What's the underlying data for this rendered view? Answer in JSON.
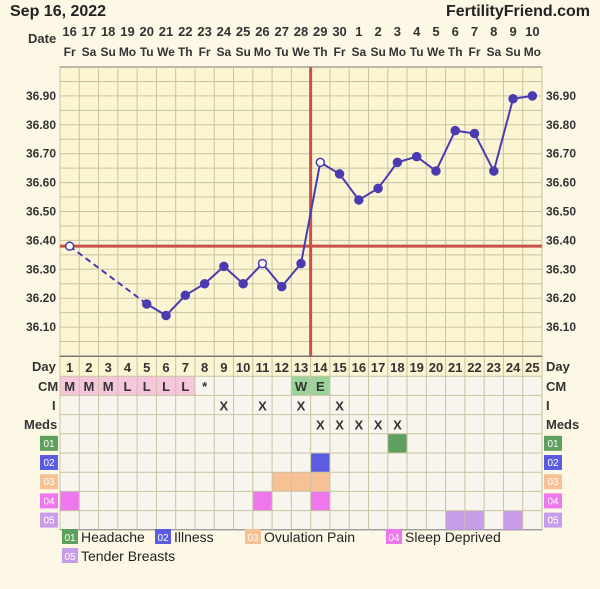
{
  "header": {
    "date": "Sep 16, 2022",
    "site": "FertilityFriend.com"
  },
  "labels": {
    "date_row": "Date",
    "day_row": "Day",
    "cm_row": "CM",
    "i_row": "I",
    "meds_row": "Meds"
  },
  "chart_data": {
    "type": "line",
    "dates": [
      "16",
      "17",
      "18",
      "19",
      "20",
      "21",
      "22",
      "23",
      "24",
      "25",
      "26",
      "27",
      "28",
      "29",
      "30",
      "1",
      "2",
      "3",
      "4",
      "5",
      "6",
      "7",
      "8",
      "9",
      "10"
    ],
    "weekdays": [
      "Fr",
      "Sa",
      "Su",
      "Mo",
      "Tu",
      "We",
      "Th",
      "Fr",
      "Sa",
      "Su",
      "Mo",
      "Tu",
      "We",
      "Th",
      "Fr",
      "Sa",
      "Su",
      "Mo",
      "Tu",
      "We",
      "Th",
      "Fr",
      "Sa",
      "Su",
      "Mo"
    ],
    "days": [
      1,
      2,
      3,
      4,
      5,
      6,
      7,
      8,
      9,
      10,
      11,
      12,
      13,
      14,
      15,
      16,
      17,
      18,
      19,
      20,
      21,
      22,
      23,
      24,
      25
    ],
    "y_ticks": [
      "36.10",
      "36.20",
      "36.30",
      "36.40",
      "36.50",
      "36.60",
      "36.70",
      "36.80",
      "36.90"
    ],
    "ylim": [
      36.0,
      37.0
    ],
    "temps": [
      36.38,
      null,
      null,
      null,
      36.18,
      36.14,
      36.21,
      36.25,
      36.31,
      36.25,
      36.32,
      36.24,
      36.32,
      36.67,
      36.63,
      36.54,
      36.58,
      36.67,
      36.69,
      36.64,
      36.78,
      36.77,
      36.64,
      36.89,
      36.9
    ],
    "open_points": [
      1,
      11,
      14
    ],
    "dashed_segment": [
      1,
      5
    ],
    "coverline": 36.38,
    "ovulation_day": 13,
    "cm": [
      "M",
      "M",
      "M",
      "L",
      "L",
      "L",
      "L",
      "*",
      "",
      "",
      "",
      "",
      "W",
      "E",
      "",
      "",
      "",
      "",
      "",
      "",
      "",
      "",
      "",
      "",
      ""
    ],
    "intercourse": [
      "",
      "",
      "",
      "",
      "",
      "",
      "",
      "",
      "X",
      "",
      "X",
      "",
      "X",
      "",
      "X",
      "",
      "",
      "",
      "",
      "",
      "",
      "",
      "",
      "",
      ""
    ],
    "meds": [
      "",
      "",
      "",
      "",
      "",
      "",
      "",
      "",
      "",
      "",
      "",
      "",
      "",
      "X",
      "X",
      "X",
      "X",
      "X",
      "",
      "",
      "",
      "",
      "",
      "",
      ""
    ],
    "symptoms": [
      {
        "id": "01",
        "label": "Headache",
        "color": "#5fa05f",
        "days": [
          18
        ]
      },
      {
        "id": "02",
        "label": "Illness",
        "color": "#5c5ce0",
        "days": [
          14
        ]
      },
      {
        "id": "03",
        "label": "Ovulation Pain",
        "color": "#f5c195",
        "days": [
          12,
          13,
          14
        ]
      },
      {
        "id": "04",
        "label": "Sleep Deprived",
        "color": "#ee77ee",
        "days": [
          1,
          11,
          14
        ]
      },
      {
        "id": "05",
        "label": "Tender Breasts",
        "color": "#c79ce8",
        "days": [
          21,
          22,
          24
        ]
      }
    ],
    "colors": {
      "line": "#4b3bb0",
      "coverline": "#c9504b",
      "cm_pink": "#f6c6dc",
      "cm_green": "#9ad49a",
      "grid_bg": "#fbf5d4",
      "grid_line": "#c9c3a2"
    }
  }
}
